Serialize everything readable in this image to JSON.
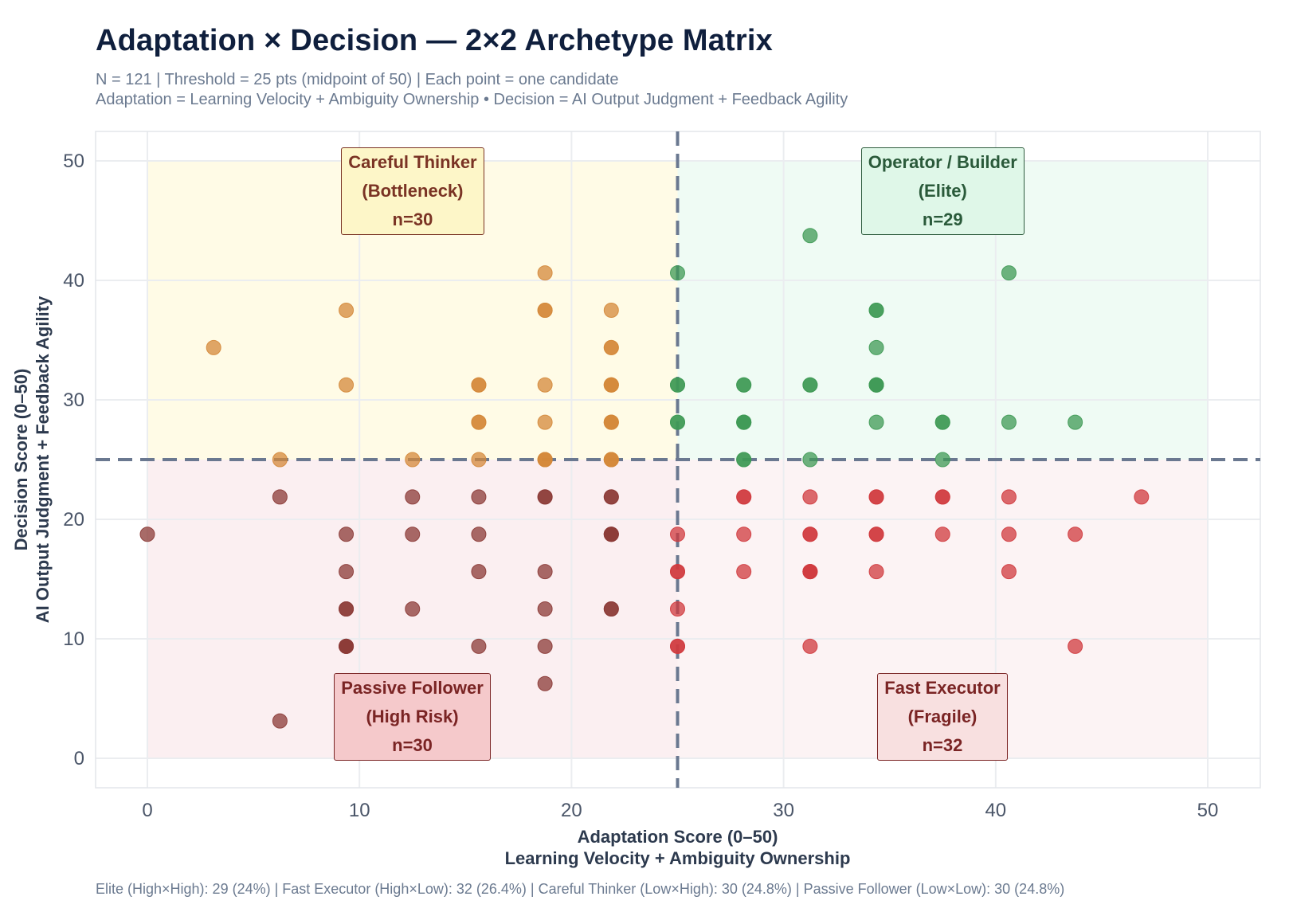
{
  "title": "Adaptation × Decision — 2×2 Archetype Matrix",
  "subtitle_line1": "N = 121  |  Threshold = 25 pts (midpoint of 50)  |  Each point = one candidate",
  "subtitle_line2": "Adaptation = Learning Velocity + Ambiguity Ownership  •  Decision = AI Output Judgment + Feedback Agility",
  "footer": "Elite (High×High): 29 (24%)  |  Fast Executor (High×Low): 32 (26.4%)  |  Careful Thinker (Low×High): 30 (24.8%)  |  Passive Follower (Low×Low): 30 (24.8%)",
  "chart_data": {
    "type": "scatter",
    "title": "Adaptation × Decision — 2×2 Archetype Matrix",
    "xlabel": "Adaptation Score (0–50)",
    "xlabel_sub": "Learning Velocity + Ambiguity Ownership",
    "ylabel": "Decision Score (0–50)",
    "ylabel_sub": "AI Output Judgment + Feedback Agility",
    "xlim": [
      -2.5,
      52.5
    ],
    "ylim": [
      -2.5,
      52.5
    ],
    "xticks": [
      0,
      10,
      20,
      30,
      40,
      50
    ],
    "yticks": [
      0,
      10,
      20,
      30,
      40,
      50
    ],
    "grid": true,
    "threshold": 25,
    "quadrants": [
      {
        "key": "careful",
        "name": "Careful Thinker",
        "sub": "(Bottleneck)",
        "n_label": "n=30",
        "x_range": [
          0,
          25
        ],
        "y_range": [
          25,
          50
        ],
        "label_x": 12.5,
        "label_y": 47.5,
        "fill": "#fffbe6",
        "box_bg": "#fdf6c8",
        "box_border": "#7a3324",
        "text_color": "#7a3324",
        "point_color": "#d4883a"
      },
      {
        "key": "elite",
        "name": "Operator / Builder",
        "sub": "(Elite)",
        "n_label": "n=29",
        "x_range": [
          25,
          50
        ],
        "y_range": [
          25,
          50
        ],
        "label_x": 37.5,
        "label_y": 47.5,
        "fill": "#effbf4",
        "box_bg": "#dff7e8",
        "box_border": "#2f5d3f",
        "text_color": "#2a5a3a",
        "point_color": "#3f9a55"
      },
      {
        "key": "passive",
        "name": "Passive Follower",
        "sub": "(High Risk)",
        "n_label": "n=30",
        "x_range": [
          0,
          25
        ],
        "y_range": [
          0,
          25
        ],
        "label_x": 12.5,
        "label_y": 3.5,
        "fill": "#fbeff1",
        "box_bg": "#f5c9cb",
        "box_border": "#7a2424",
        "text_color": "#7a2424",
        "point_color": "#8b3a36"
      },
      {
        "key": "fast",
        "name": "Fast Executor",
        "sub": "(Fragile)",
        "n_label": "n=32",
        "x_range": [
          25,
          50
        ],
        "y_range": [
          0,
          25
        ],
        "label_x": 37.5,
        "label_y": 3.5,
        "fill": "#fcf3f4",
        "box_bg": "#f8e0e0",
        "box_border": "#7a2424",
        "text_color": "#7a2424",
        "point_color": "#d03a3e"
      }
    ],
    "series": [
      {
        "name": "Careful Thinker",
        "quadrant": "careful",
        "points": [
          [
            3.125,
            34.375
          ],
          [
            6.25,
            25
          ],
          [
            9.375,
            37.5
          ],
          [
            9.375,
            31.25
          ],
          [
            12.5,
            25
          ],
          [
            15.625,
            31.25
          ],
          [
            15.625,
            31.25
          ],
          [
            15.625,
            28.125
          ],
          [
            15.625,
            28.125
          ],
          [
            15.625,
            25
          ],
          [
            18.75,
            40.625
          ],
          [
            18.75,
            37.5
          ],
          [
            18.75,
            37.5
          ],
          [
            18.75,
            31.25
          ],
          [
            18.75,
            28.125
          ],
          [
            18.75,
            25
          ],
          [
            18.75,
            25
          ],
          [
            18.75,
            25
          ],
          [
            21.875,
            37.5
          ],
          [
            21.875,
            34.375
          ],
          [
            21.875,
            34.375
          ],
          [
            21.875,
            31.25
          ],
          [
            21.875,
            31.25
          ],
          [
            21.875,
            31.25
          ],
          [
            21.875,
            28.125
          ],
          [
            21.875,
            28.125
          ],
          [
            21.875,
            28.125
          ],
          [
            21.875,
            25
          ],
          [
            21.875,
            25
          ],
          [
            21.875,
            25
          ]
        ]
      },
      {
        "name": "Operator / Builder (Elite)",
        "quadrant": "elite",
        "points": [
          [
            31.25,
            43.75
          ],
          [
            25,
            40.625
          ],
          [
            40.625,
            40.625
          ],
          [
            34.375,
            37.5
          ],
          [
            34.375,
            37.5
          ],
          [
            34.375,
            34.375
          ],
          [
            25,
            31.25
          ],
          [
            25,
            31.25
          ],
          [
            28.125,
            31.25
          ],
          [
            28.125,
            31.25
          ],
          [
            31.25,
            31.25
          ],
          [
            31.25,
            31.25
          ],
          [
            34.375,
            31.25
          ],
          [
            34.375,
            31.25
          ],
          [
            34.375,
            31.25
          ],
          [
            25,
            28.125
          ],
          [
            25,
            28.125
          ],
          [
            28.125,
            28.125
          ],
          [
            28.125,
            28.125
          ],
          [
            28.125,
            28.125
          ],
          [
            34.375,
            28.125
          ],
          [
            37.5,
            28.125
          ],
          [
            37.5,
            28.125
          ],
          [
            40.625,
            28.125
          ],
          [
            43.75,
            28.125
          ],
          [
            28.125,
            25
          ],
          [
            28.125,
            25
          ],
          [
            31.25,
            25
          ],
          [
            37.5,
            25
          ]
        ]
      },
      {
        "name": "Passive Follower",
        "quadrant": "passive",
        "points": [
          [
            6.25,
            21.875
          ],
          [
            12.5,
            21.875
          ],
          [
            15.625,
            21.875
          ],
          [
            18.75,
            21.875
          ],
          [
            18.75,
            21.875
          ],
          [
            21.875,
            21.875
          ],
          [
            21.875,
            21.875
          ],
          [
            0,
            18.75
          ],
          [
            9.375,
            18.75
          ],
          [
            12.5,
            18.75
          ],
          [
            15.625,
            18.75
          ],
          [
            21.875,
            18.75
          ],
          [
            21.875,
            18.75
          ],
          [
            21.875,
            18.75
          ],
          [
            9.375,
            15.625
          ],
          [
            15.625,
            15.625
          ],
          [
            18.75,
            15.625
          ],
          [
            9.375,
            12.5
          ],
          [
            9.375,
            12.5
          ],
          [
            12.5,
            12.5
          ],
          [
            18.75,
            12.5
          ],
          [
            21.875,
            12.5
          ],
          [
            21.875,
            12.5
          ],
          [
            9.375,
            9.375
          ],
          [
            9.375,
            9.375
          ],
          [
            9.375,
            9.375
          ],
          [
            15.625,
            9.375
          ],
          [
            18.75,
            9.375
          ],
          [
            18.75,
            6.25
          ],
          [
            6.25,
            3.125
          ]
        ]
      },
      {
        "name": "Fast Executor",
        "quadrant": "fast",
        "points": [
          [
            28.125,
            21.875
          ],
          [
            28.125,
            21.875
          ],
          [
            31.25,
            21.875
          ],
          [
            34.375,
            21.875
          ],
          [
            34.375,
            21.875
          ],
          [
            37.5,
            21.875
          ],
          [
            37.5,
            21.875
          ],
          [
            40.625,
            21.875
          ],
          [
            46.875,
            21.875
          ],
          [
            25,
            18.75
          ],
          [
            28.125,
            18.75
          ],
          [
            31.25,
            18.75
          ],
          [
            31.25,
            18.75
          ],
          [
            34.375,
            18.75
          ],
          [
            34.375,
            18.75
          ],
          [
            37.5,
            18.75
          ],
          [
            40.625,
            18.75
          ],
          [
            43.75,
            18.75
          ],
          [
            25,
            15.625
          ],
          [
            25,
            15.625
          ],
          [
            28.125,
            15.625
          ],
          [
            31.25,
            15.625
          ],
          [
            31.25,
            15.625
          ],
          [
            31.25,
            15.625
          ],
          [
            34.375,
            15.625
          ],
          [
            40.625,
            15.625
          ],
          [
            25,
            12.5
          ],
          [
            25,
            9.375
          ],
          [
            25,
            9.375
          ],
          [
            31.25,
            9.375
          ],
          [
            43.75,
            9.375
          ],
          [
            37.5,
            6.25
          ]
        ]
      }
    ]
  }
}
